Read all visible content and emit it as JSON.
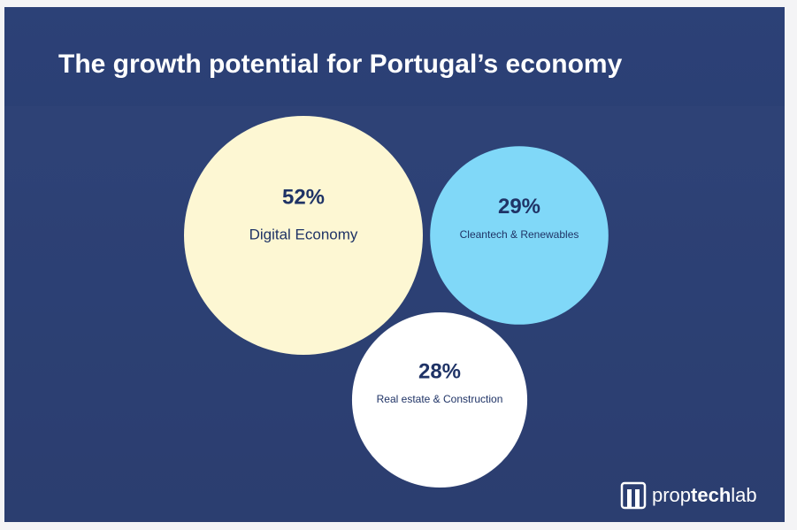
{
  "chart_data": {
    "type": "bubble",
    "title": "The growth potential for Portugal’s economy",
    "categories": [
      "Digital Economy",
      "Cleantech & Renewables",
      "Real estate & Construction"
    ],
    "values": [
      52,
      29,
      28
    ],
    "value_labels": [
      "52%",
      "29%",
      "28%"
    ],
    "colors": [
      "#fdf7d3",
      "#80d8f8",
      "#ffffff"
    ]
  },
  "brand": [
    "prop",
    "tech",
    "lab"
  ]
}
